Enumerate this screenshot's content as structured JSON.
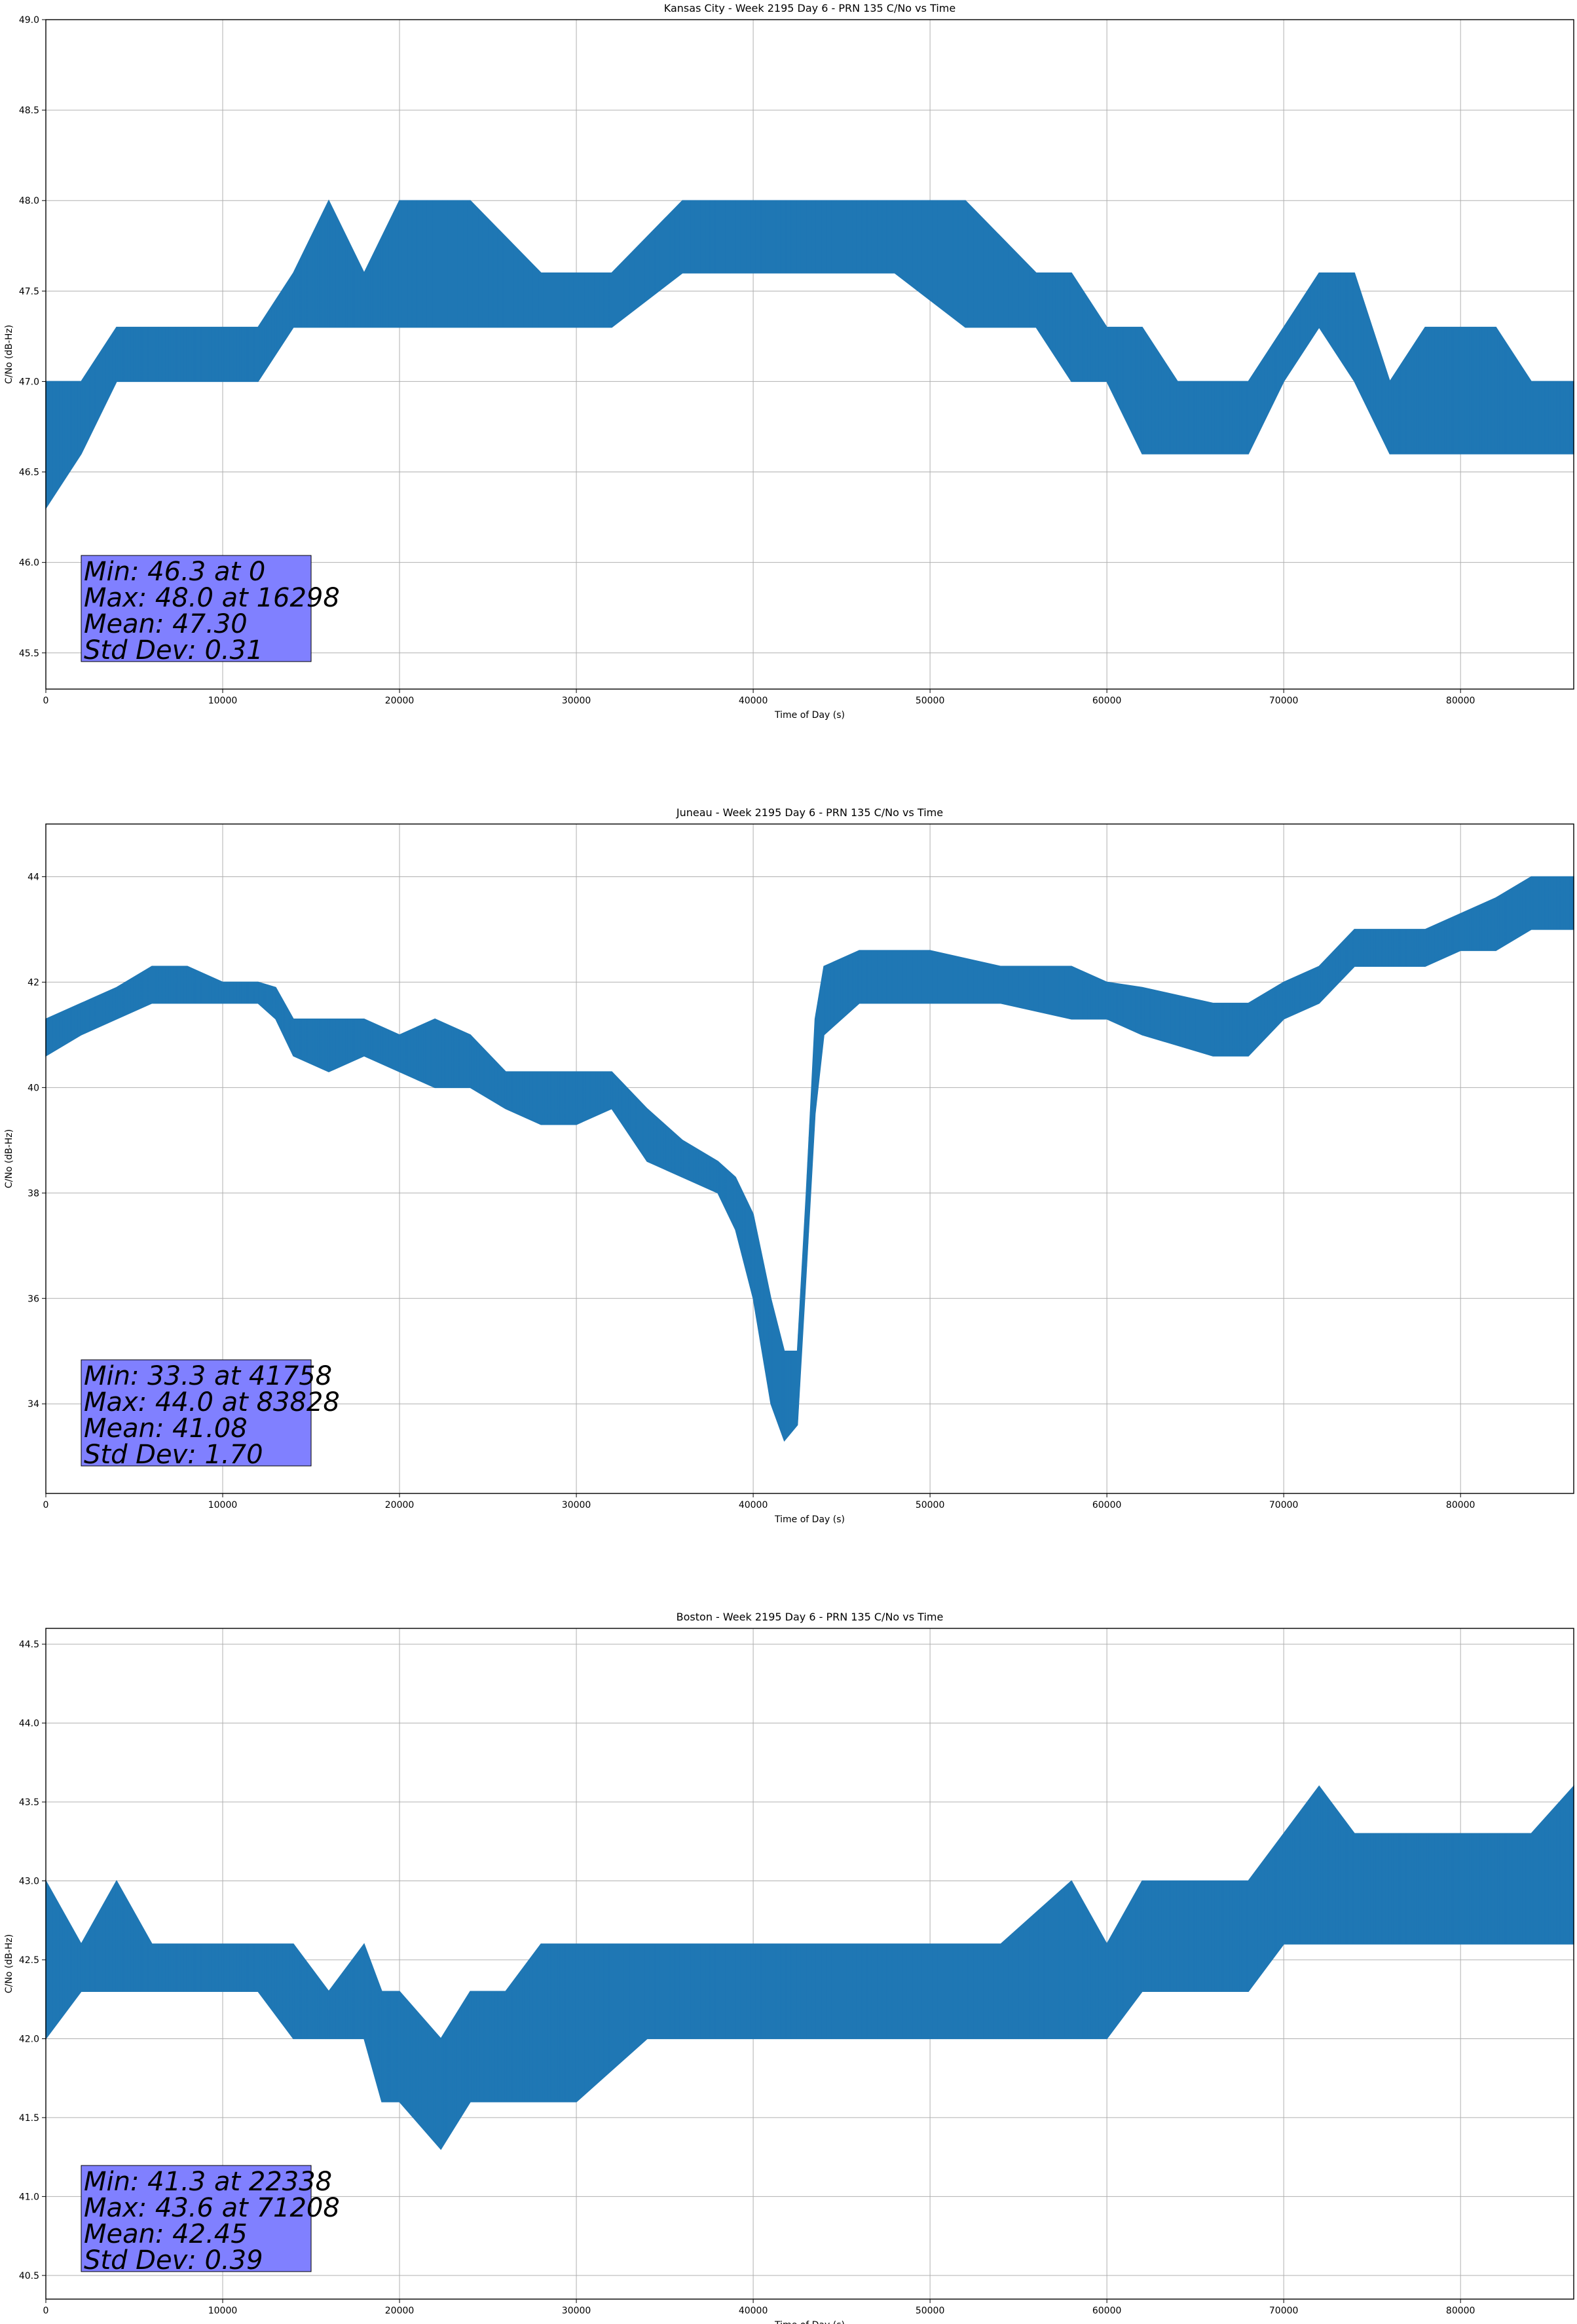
{
  "chart_data": [
    {
      "type": "line",
      "title": "Kansas City - Week 2195 Day 6 - PRN 135 C/No vs Time",
      "xlabel": "Time of Day (s)",
      "ylabel": "C/No (dB-Hz)",
      "xlim": [
        0,
        86400
      ],
      "ylim": [
        45.3,
        49.0
      ],
      "xticks": [
        0,
        10000,
        20000,
        30000,
        40000,
        50000,
        60000,
        70000,
        80000
      ],
      "xtick_labels": [
        "0",
        "10000",
        "20000",
        "30000",
        "40000",
        "50000",
        "60000",
        "70000",
        "80000"
      ],
      "yticks": [
        45.5,
        46.0,
        46.5,
        47.0,
        47.5,
        48.0,
        48.5,
        49.0
      ],
      "ytick_labels": [
        "45.5",
        "46.0",
        "46.5",
        "47.0",
        "47.5",
        "48.0",
        "48.5",
        "49.0"
      ],
      "grid": true,
      "color": "#1f77b4",
      "series": [
        {
          "x": [
            0,
            2000,
            4000,
            6000,
            8000,
            10000,
            12000,
            14000,
            16000,
            18000,
            20000,
            24000,
            28000,
            32000,
            36000,
            40000,
            44000,
            48000,
            52000,
            56000,
            58000,
            60000,
            62000,
            64000,
            66000,
            68000,
            70000,
            72000,
            74000,
            76000,
            78000,
            80000,
            82000,
            84000,
            86400
          ],
          "low": [
            46.3,
            46.6,
            47.0,
            47.0,
            47.0,
            47.0,
            47.0,
            47.3,
            47.3,
            47.3,
            47.3,
            47.3,
            47.3,
            47.3,
            47.6,
            47.6,
            47.6,
            47.6,
            47.3,
            47.3,
            47.0,
            47.0,
            46.6,
            46.6,
            46.6,
            46.6,
            47.0,
            47.3,
            47.0,
            46.6,
            46.6,
            46.6,
            46.6,
            46.6,
            46.6
          ],
          "high": [
            47.0,
            47.0,
            47.3,
            47.3,
            47.3,
            47.3,
            47.3,
            47.6,
            48.0,
            47.6,
            48.0,
            48.0,
            47.6,
            47.6,
            48.0,
            48.0,
            48.0,
            48.0,
            48.0,
            47.6,
            47.6,
            47.3,
            47.3,
            47.0,
            47.0,
            47.0,
            47.3,
            47.6,
            47.6,
            47.0,
            47.3,
            47.3,
            47.3,
            47.0,
            47.0
          ]
        }
      ],
      "stats": [
        "Min: 46.3 at 0",
        "Max: 48.0 at 16298",
        "Mean: 47.30",
        "Std Dev: 0.31"
      ],
      "stats_box_color": "#8080ff"
    },
    {
      "type": "line",
      "title": "Juneau - Week 2195 Day 6 - PRN 135 C/No vs Time",
      "xlabel": "Time of Day (s)",
      "ylabel": "C/No (dB-Hz)",
      "xlim": [
        0,
        86400
      ],
      "ylim": [
        32.3,
        45.0
      ],
      "xticks": [
        0,
        10000,
        20000,
        30000,
        40000,
        50000,
        60000,
        70000,
        80000
      ],
      "xtick_labels": [
        "0",
        "10000",
        "20000",
        "30000",
        "40000",
        "50000",
        "60000",
        "70000",
        "80000"
      ],
      "yticks": [
        34,
        36,
        38,
        40,
        42,
        44
      ],
      "ytick_labels": [
        "34",
        "36",
        "38",
        "40",
        "42",
        "44"
      ],
      "grid": true,
      "color": "#1f77b4",
      "series": [
        {
          "x": [
            0,
            2000,
            4000,
            6000,
            8000,
            10000,
            12000,
            13000,
            14000,
            16000,
            18000,
            20000,
            22000,
            24000,
            26000,
            28000,
            30000,
            32000,
            34000,
            36000,
            38000,
            39000,
            40000,
            41000,
            41758,
            42500,
            43000,
            43500,
            44000,
            46000,
            50000,
            54000,
            58000,
            60000,
            62000,
            66000,
            68000,
            70000,
            72000,
            74000,
            76000,
            78000,
            80000,
            82000,
            84000,
            86400
          ],
          "low": [
            40.6,
            41.0,
            41.3,
            41.6,
            41.6,
            41.6,
            41.6,
            41.3,
            40.6,
            40.3,
            40.6,
            40.3,
            40.0,
            40.0,
            39.6,
            39.3,
            39.3,
            39.6,
            38.6,
            38.3,
            38.0,
            37.3,
            36.0,
            34.0,
            33.3,
            33.6,
            36.5,
            39.5,
            41.0,
            41.6,
            41.6,
            41.6,
            41.3,
            41.3,
            41.0,
            40.6,
            40.6,
            41.3,
            41.6,
            42.3,
            42.3,
            42.3,
            42.6,
            42.6,
            43.0,
            43.0
          ],
          "high": [
            41.3,
            41.6,
            41.9,
            42.3,
            42.3,
            42.0,
            42.0,
            41.9,
            41.3,
            41.3,
            41.3,
            41.0,
            41.3,
            41.0,
            40.3,
            40.3,
            40.3,
            40.3,
            39.6,
            39.0,
            38.6,
            38.3,
            37.6,
            36.0,
            35.0,
            35.0,
            38.0,
            41.3,
            42.3,
            42.6,
            42.6,
            42.3,
            42.3,
            42.0,
            41.9,
            41.6,
            41.6,
            42.0,
            42.3,
            43.0,
            43.0,
            43.0,
            43.3,
            43.6,
            44.0,
            44.0
          ]
        }
      ],
      "stats": [
        "Min: 33.3 at 41758",
        "Max: 44.0 at 83828",
        "Mean: 41.08",
        "Std Dev: 1.70"
      ],
      "stats_box_color": "#8080ff"
    },
    {
      "type": "line",
      "title": "Boston - Week 2195 Day 6 - PRN 135 C/No vs Time",
      "xlabel": "Time of Day (s)",
      "ylabel": "C/No (dB-Hz)",
      "xlim": [
        0,
        86400
      ],
      "ylim": [
        40.35,
        44.6
      ],
      "xticks": [
        0,
        10000,
        20000,
        30000,
        40000,
        50000,
        60000,
        70000,
        80000
      ],
      "xtick_labels": [
        "0",
        "10000",
        "20000",
        "30000",
        "40000",
        "50000",
        "60000",
        "70000",
        "80000"
      ],
      "yticks": [
        40.5,
        41.0,
        41.5,
        42.0,
        42.5,
        43.0,
        43.5,
        44.0,
        44.5
      ],
      "ytick_labels": [
        "40.5",
        "41.0",
        "41.5",
        "42.0",
        "42.5",
        "43.0",
        "43.5",
        "44.0",
        "44.5"
      ],
      "grid": true,
      "color": "#1f77b4",
      "series": [
        {
          "x": [
            0,
            2000,
            4000,
            6000,
            8000,
            10000,
            12000,
            14000,
            16000,
            18000,
            19000,
            20000,
            22338,
            24000,
            26000,
            28000,
            30000,
            34000,
            38000,
            42000,
            46000,
            50000,
            54000,
            58000,
            60000,
            62000,
            64000,
            66000,
            68000,
            70000,
            72000,
            74000,
            76000,
            78000,
            80000,
            82000,
            84000,
            86400
          ],
          "low": [
            42.0,
            42.3,
            42.3,
            42.3,
            42.3,
            42.3,
            42.3,
            42.0,
            42.0,
            42.0,
            41.6,
            41.6,
            41.3,
            41.6,
            41.6,
            41.6,
            41.6,
            42.0,
            42.0,
            42.0,
            42.0,
            42.0,
            42.0,
            42.0,
            42.0,
            42.3,
            42.3,
            42.3,
            42.3,
            42.6,
            42.6,
            42.6,
            42.6,
            42.6,
            42.6,
            42.6,
            42.6,
            42.6
          ],
          "high": [
            43.0,
            42.6,
            43.0,
            42.6,
            42.6,
            42.6,
            42.6,
            42.6,
            42.3,
            42.6,
            42.3,
            42.3,
            42.0,
            42.3,
            42.3,
            42.6,
            42.6,
            42.6,
            42.6,
            42.6,
            42.6,
            42.6,
            42.6,
            43.0,
            42.6,
            43.0,
            43.0,
            43.0,
            43.0,
            43.3,
            43.6,
            43.3,
            43.3,
            43.3,
            43.3,
            43.3,
            43.3,
            43.6
          ]
        }
      ],
      "stats": [
        "Min: 41.3 at 22338",
        "Max: 43.6 at 71208",
        "Mean: 42.45",
        "Std Dev: 0.39"
      ],
      "stats_box_color": "#8080ff"
    }
  ]
}
